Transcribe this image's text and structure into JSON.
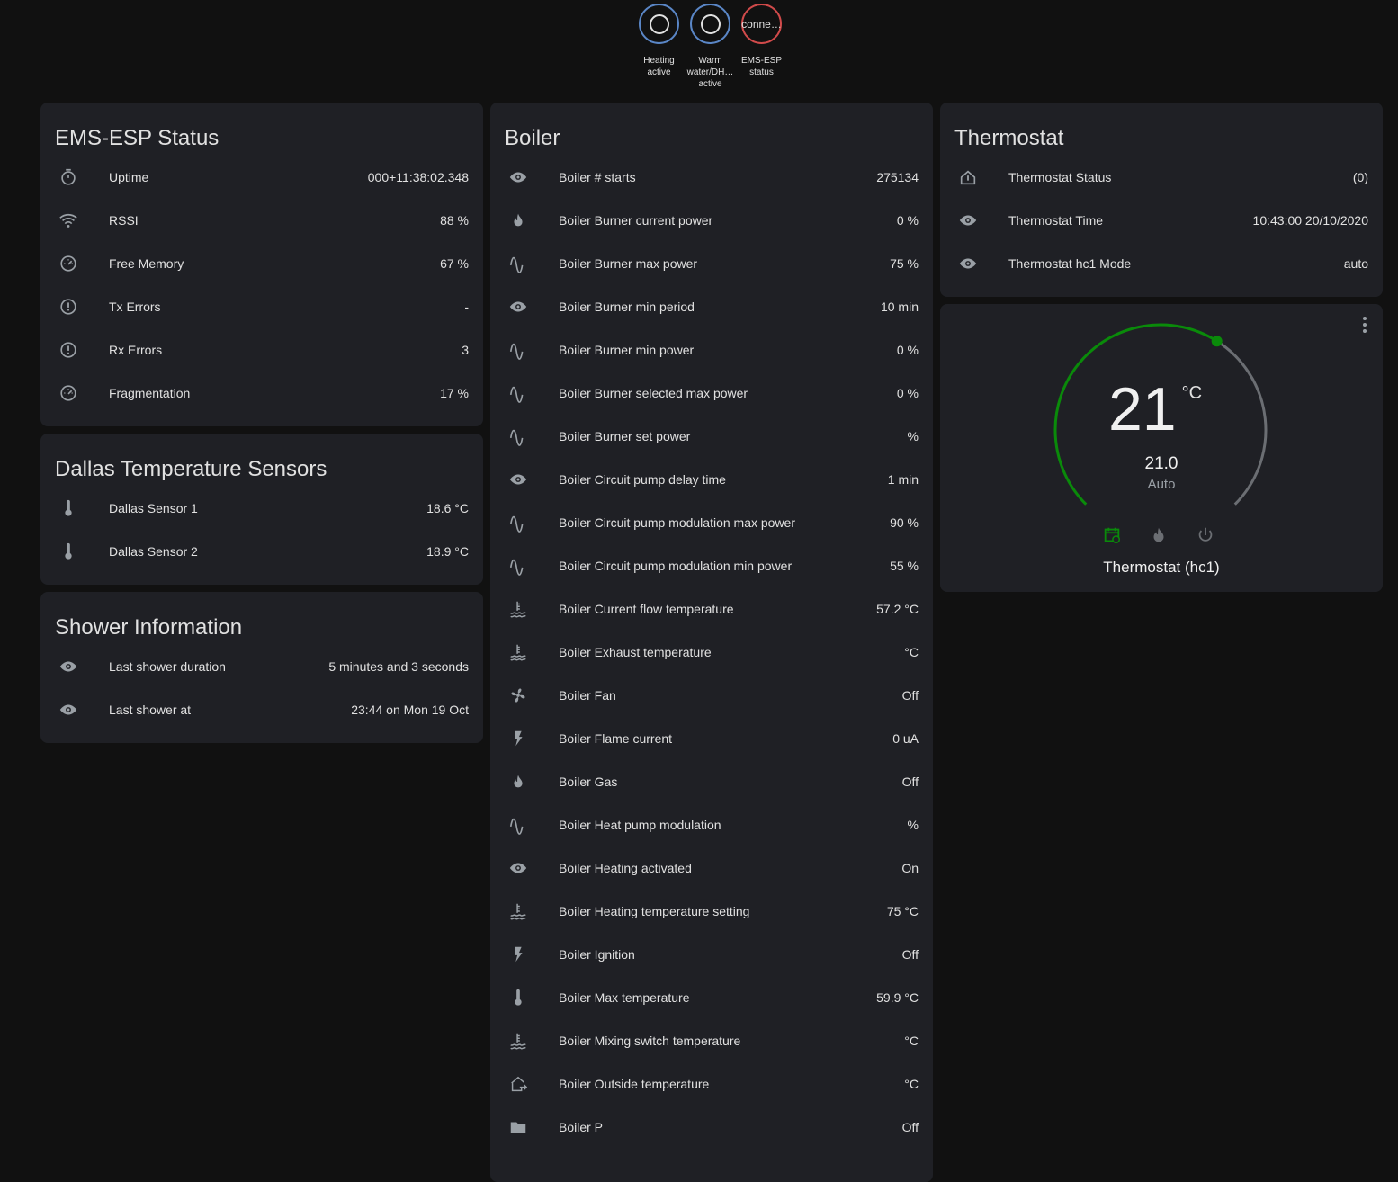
{
  "badges": [
    {
      "label": "Heating active",
      "content": "circle-outline",
      "color": "#5a86c6"
    },
    {
      "label": "Warm water/DH… active",
      "content": "circle-outline",
      "color": "#5a86c6"
    },
    {
      "label": "EMS-ESP status",
      "content": "conne…",
      "color": "#d04a4a"
    }
  ],
  "ems_status": {
    "title": "EMS-ESP Status",
    "rows": [
      {
        "icon": "timer-icon",
        "label": "Uptime",
        "value": "000+11:38:02.348"
      },
      {
        "icon": "wifi-icon",
        "label": "RSSI",
        "value": "88 %"
      },
      {
        "icon": "gauge-icon",
        "label": "Free Memory",
        "value": "67 %"
      },
      {
        "icon": "alert-circle-icon",
        "label": "Tx Errors",
        "value": "-"
      },
      {
        "icon": "alert-circle-icon",
        "label": "Rx Errors",
        "value": "3"
      },
      {
        "icon": "gauge-icon",
        "label": "Fragmentation",
        "value": "17 %"
      }
    ]
  },
  "dallas": {
    "title": "Dallas Temperature Sensors",
    "rows": [
      {
        "icon": "thermometer-icon",
        "label": "Dallas Sensor 1",
        "value": "18.6 °C"
      },
      {
        "icon": "thermometer-icon",
        "label": "Dallas Sensor 2",
        "value": "18.9 °C"
      }
    ]
  },
  "shower": {
    "title": "Shower Information",
    "rows": [
      {
        "icon": "eye-icon",
        "label": "Last shower duration",
        "value": "5 minutes and 3 seconds"
      },
      {
        "icon": "eye-icon",
        "label": "Last shower at",
        "value": "23:44 on Mon 19 Oct"
      }
    ]
  },
  "boiler": {
    "title": "Boiler",
    "rows": [
      {
        "icon": "eye-icon",
        "label": "Boiler # starts",
        "value": "275134"
      },
      {
        "icon": "fire-icon",
        "label": "Boiler Burner current power",
        "value": "0 %"
      },
      {
        "icon": "sine-wave-icon",
        "label": "Boiler Burner max power",
        "value": "75 %"
      },
      {
        "icon": "eye-icon",
        "label": "Boiler Burner min period",
        "value": "10 min"
      },
      {
        "icon": "sine-wave-icon",
        "label": "Boiler Burner min power",
        "value": "0 %"
      },
      {
        "icon": "sine-wave-icon",
        "label": "Boiler Burner selected max power",
        "value": "0 %"
      },
      {
        "icon": "sine-wave-icon",
        "label": "Boiler Burner set power",
        "value": "%"
      },
      {
        "icon": "eye-icon",
        "label": "Boiler Circuit pump delay time",
        "value": "1 min"
      },
      {
        "icon": "sine-wave-icon",
        "label": "Boiler Circuit pump modulation max power",
        "value": "90 %"
      },
      {
        "icon": "sine-wave-icon",
        "label": "Boiler Circuit pump modulation min power",
        "value": "55 %"
      },
      {
        "icon": "water-thermometer-icon",
        "label": "Boiler Current flow temperature",
        "value": "57.2 °C"
      },
      {
        "icon": "water-thermometer-icon",
        "label": "Boiler Exhaust temperature",
        "value": "°C"
      },
      {
        "icon": "fan-icon",
        "label": "Boiler Fan",
        "value": "Off"
      },
      {
        "icon": "flash-icon",
        "label": "Boiler Flame current",
        "value": "0 uA"
      },
      {
        "icon": "fire-icon",
        "label": "Boiler Gas",
        "value": "Off"
      },
      {
        "icon": "sine-wave-icon",
        "label": "Boiler Heat pump modulation",
        "value": "%"
      },
      {
        "icon": "eye-icon",
        "label": "Boiler Heating activated",
        "value": "On"
      },
      {
        "icon": "water-thermometer-icon",
        "label": "Boiler Heating temperature setting",
        "value": "75 °C"
      },
      {
        "icon": "flash-icon",
        "label": "Boiler Ignition",
        "value": "Off"
      },
      {
        "icon": "thermometer-icon",
        "label": "Boiler Max temperature",
        "value": "59.9 °C"
      },
      {
        "icon": "water-thermometer-icon",
        "label": "Boiler Mixing switch temperature",
        "value": "°C"
      },
      {
        "icon": "home-export-icon",
        "label": "Boiler Outside temperature",
        "value": "°C"
      },
      {
        "icon": "folder-icon",
        "label": "Boiler P",
        "value": "Off"
      }
    ]
  },
  "thermostat": {
    "title": "Thermostat",
    "rows": [
      {
        "icon": "home-thermometer-icon",
        "label": "Thermostat Status",
        "value": "(0)"
      },
      {
        "icon": "eye-icon",
        "label": "Thermostat Time",
        "value": "10:43:00 20/10/2020"
      },
      {
        "icon": "eye-icon",
        "label": "Thermostat hc1 Mode",
        "value": "auto"
      }
    ]
  },
  "climate": {
    "current": "21",
    "unit": "°C",
    "target": "21.0",
    "mode": "Auto",
    "name": "Thermostat (hc1)",
    "setpoint_fraction": 0.62,
    "accent": "#0a8a0a"
  }
}
